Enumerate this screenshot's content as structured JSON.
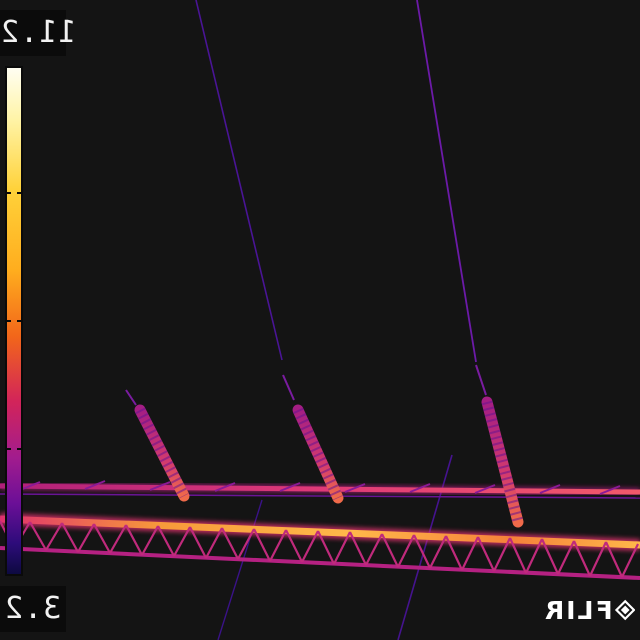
{
  "temperature_scale": {
    "max": "11.2",
    "min": "3.2",
    "palette_colors": [
      "#fffef2",
      "#fff4a8",
      "#ffd23a",
      "#ffad1e",
      "#f2661a",
      "#d2245a",
      "#a21c8e",
      "#6b0f97",
      "#2d0c7a",
      "#0d0a40"
    ]
  },
  "brand": {
    "name": "FLIR"
  },
  "scene": {
    "background_color": "#141414",
    "hot_color": "#ffb32e",
    "warm_color": "#e0306e",
    "cool_color": "#5a1aa8"
  }
}
